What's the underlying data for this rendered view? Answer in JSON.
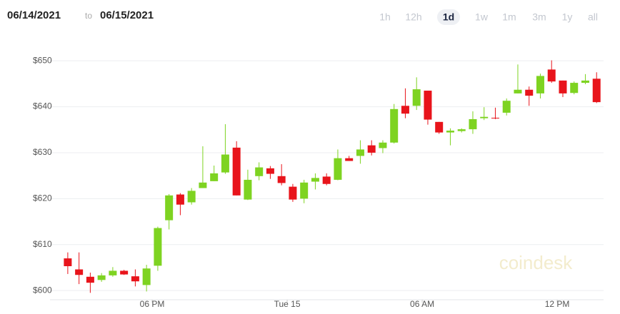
{
  "header": {
    "from": "06/14/2021",
    "to_word": "to",
    "to": "06/15/2021",
    "ranges": [
      "1h",
      "12h",
      "1d",
      "1w",
      "1m",
      "3m",
      "1y",
      "all"
    ],
    "selected": "1d"
  },
  "watermark": "coindesk",
  "chart_data": {
    "type": "candlestick",
    "up_color": "#7ed321",
    "down_color": "#e8141b",
    "grid": true,
    "x": [
      14.25,
      14.75,
      15.25,
      15.75,
      16.25,
      16.75,
      17.25,
      17.75,
      18.25,
      18.75,
      19.25,
      19.75,
      20.25,
      20.75,
      21.25,
      21.75,
      22.25,
      22.75,
      23.25,
      23.75,
      24.25,
      24.75,
      25.25,
      25.75,
      26.25,
      26.75,
      27.25,
      27.75,
      28.25,
      28.75,
      29.25,
      29.75,
      30.25,
      30.75,
      31.25,
      31.75,
      32.25,
      32.75,
      33.25,
      33.75,
      34.25,
      34.75,
      35.25,
      35.75,
      36.25,
      36.75,
      37.25,
      37.75
    ],
    "open": [
      607,
      604.6,
      603,
      602.3,
      603.3,
      604.3,
      603.1,
      601.2,
      605.4,
      615.3,
      620.9,
      619.2,
      622.3,
      623.8,
      625.7,
      631.1,
      619.8,
      624.9,
      626.6,
      624.9,
      622.6,
      620,
      623.7,
      624.8,
      624.1,
      628.8,
      629.3,
      631.6,
      631,
      632.2,
      640.2,
      640.2,
      643.5,
      636.7,
      634.4,
      634.7,
      635.1,
      637.5,
      637.6,
      638.7,
      642.9,
      643.7,
      642.9,
      648.1,
      645.7,
      643,
      645.2,
      646.1
    ],
    "high": [
      608.3,
      608.3,
      603.9,
      603.8,
      605.1,
      604.5,
      604.6,
      605.6,
      613.9,
      621,
      621.2,
      622.3,
      631.4,
      627.2,
      636.2,
      632.5,
      626.3,
      627.9,
      627.1,
      627.5,
      623.2,
      624.1,
      625.5,
      625.5,
      630.7,
      629.3,
      632.7,
      632.7,
      632.7,
      640.6,
      644,
      646.4,
      643.5,
      636.7,
      635.3,
      635.3,
      639,
      639.9,
      639.8,
      641.8,
      649.2,
      644.4,
      647.2,
      650.1,
      645.7,
      645.5,
      647.1,
      647.5
    ],
    "low": [
      603.6,
      601.4,
      599.5,
      601.9,
      603,
      603.4,
      600.9,
      599.8,
      604.3,
      613.3,
      616.4,
      618.7,
      622.3,
      623.8,
      625.4,
      620.7,
      619.7,
      624,
      624.3,
      622.9,
      619.3,
      619,
      622,
      622.9,
      624,
      628.2,
      627.6,
      629.4,
      629.9,
      632,
      637.5,
      639.3,
      636.1,
      634.1,
      631.6,
      634.4,
      634.1,
      637.1,
      637.3,
      638.1,
      642.9,
      640.2,
      641.8,
      645.2,
      642.1,
      642.7,
      644.9,
      640.8
    ],
    "close": [
      605.3,
      603.4,
      601.7,
      603.3,
      604.3,
      603.5,
      602,
      604.8,
      613.6,
      620.7,
      618.7,
      621.7,
      623.5,
      625.5,
      629.6,
      620.7,
      624.1,
      626.8,
      625.4,
      623.4,
      619.8,
      623.5,
      624.5,
      623.2,
      628.8,
      628.2,
      630.7,
      630,
      632.2,
      639.5,
      638.5,
      643.8,
      637.2,
      634.4,
      634.8,
      635.1,
      637.3,
      637.8,
      637.5,
      641.3,
      643.7,
      642.4,
      646.7,
      645.5,
      642.9,
      645.2,
      645.7,
      641
    ],
    "xlim": [
      13.46,
      38.06
    ],
    "ylim": [
      598,
      653.6
    ],
    "xticks": [
      {
        "value": 18,
        "label": "06 PM"
      },
      {
        "value": 24,
        "label": "Tue 15"
      },
      {
        "value": 30,
        "label": "06 AM"
      },
      {
        "value": 36,
        "label": "12 PM"
      }
    ],
    "yticks": [
      {
        "value": 600,
        "label": "$600"
      },
      {
        "value": 610,
        "label": "$610"
      },
      {
        "value": 620,
        "label": "$620"
      },
      {
        "value": 630,
        "label": "$630"
      },
      {
        "value": 640,
        "label": "$640"
      },
      {
        "value": 650,
        "label": "$650"
      }
    ]
  }
}
